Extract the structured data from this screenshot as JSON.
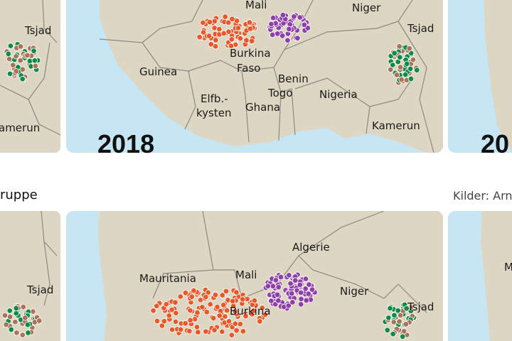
{
  "top_left": {
    "labels": [
      "Tsjad",
      "amerun"
    ]
  },
  "top_center": {
    "year": "2018",
    "labels": [
      "Mali",
      "Niger",
      "Tsjad",
      "Guinea",
      [
        "Burkina",
        "Faso"
      ],
      "Benin",
      "Togo",
      "Nigeria",
      [
        "Elfb.-",
        "kysten"
      ],
      "Ghana",
      "Kamerun"
    ]
  },
  "top_right": {
    "year": "20"
  },
  "legend_title": "ruppe",
  "source": "Kilder: Arn",
  "bottom_left": {
    "labels": [
      "Tsjad"
    ]
  },
  "bottom_center": {
    "labels": [
      "Algerie",
      "Mauritania",
      "Mali",
      "Niger",
      "Tsjad",
      "Burkina"
    ]
  },
  "bottom_right": {
    "labels": [
      "M"
    ]
  }
}
